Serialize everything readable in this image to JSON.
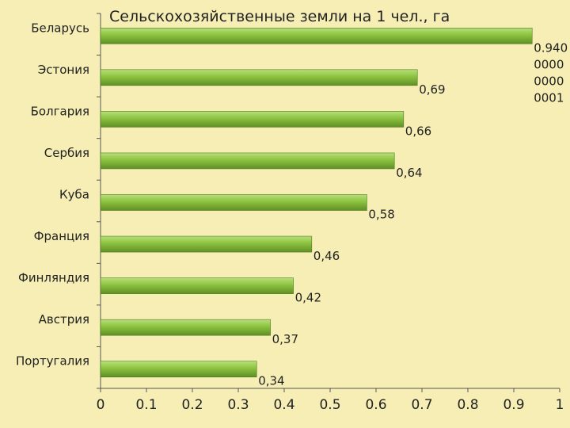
{
  "chart_data": {
    "type": "bar",
    "orientation": "horizontal",
    "title": "Сельскохозяйственные земли на 1 чел., га",
    "xlabel": "",
    "ylabel": "",
    "xlim": [
      0,
      1
    ],
    "x_ticks": [
      "0",
      "0.1",
      "0.2",
      "0.3",
      "0.4",
      "0.5",
      "0.6",
      "0.7",
      "0.8",
      "0.9",
      "1"
    ],
    "categories": [
      "Беларусь",
      "Эстония",
      "Болгария",
      "Сербия",
      "Куба",
      "Франция",
      "Финляндия",
      "Австрия",
      "Португалия"
    ],
    "values": [
      0.94,
      0.69,
      0.66,
      0.64,
      0.58,
      0.46,
      0.42,
      0.37,
      0.34
    ],
    "data_labels": [
      "0.940\n0000\n0000\n0001",
      "0,69",
      "0,66",
      "0,64",
      "0,58",
      "0,46",
      "0,42",
      "0,37",
      "0,34"
    ],
    "grid": false,
    "legend": "none",
    "colors": {
      "bar_light": "#b8e07a",
      "bar_mid": "#8cc23f",
      "bar_dark": "#5f8f26",
      "background": "#f6eeb4"
    }
  }
}
